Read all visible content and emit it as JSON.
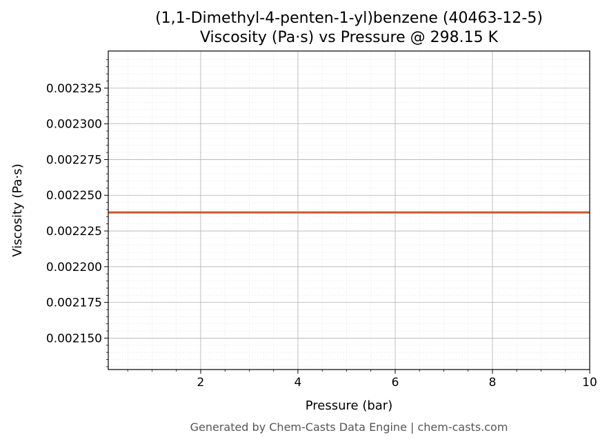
{
  "chart_data": {
    "type": "line",
    "title_line1": "(1,1-Dimethyl-4-penten-1-yl)benzene (40463-12-5)",
    "title_line2": "Viscosity (Pa·s) vs Pressure @ 298.15 K",
    "xlabel": "Pressure (bar)",
    "ylabel": "Viscosity (Pa·s)",
    "xlim": [
      0.1,
      10
    ],
    "ylim": [
      0.002128,
      0.002351
    ],
    "xticks": [
      2,
      4,
      6,
      8,
      10
    ],
    "yticks": [
      0.00215,
      0.002175,
      0.0022,
      0.002225,
      0.00225,
      0.002275,
      0.0023,
      0.002325
    ],
    "ytick_labels": [
      "0.002150",
      "0.002175",
      "0.002200",
      "0.002225",
      "0.002250",
      "0.002275",
      "0.002300",
      "0.002325"
    ],
    "grid": true,
    "series": [
      {
        "color": "#cc5529",
        "x": [
          0.1,
          1,
          2,
          3,
          4,
          5,
          6,
          7,
          8,
          9,
          10
        ],
        "y": [
          0.002238,
          0.002238,
          0.002238,
          0.002238,
          0.002238,
          0.002238,
          0.002238,
          0.002238,
          0.002238,
          0.002238,
          0.002238
        ]
      }
    ]
  },
  "footer": "Generated by Chem-Casts Data Engine | chem-casts.com"
}
